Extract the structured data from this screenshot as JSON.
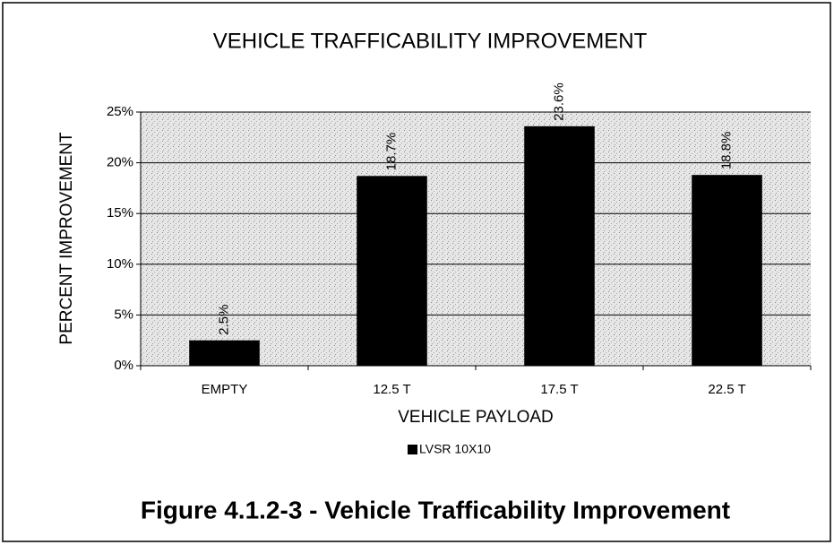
{
  "chart_data": {
    "type": "bar",
    "title": "VEHICLE TRAFFICABILITY IMPROVEMENT",
    "x_label": "VEHICLE PAYLOAD",
    "y_label": "PERCENT IMPROVEMENT",
    "categories": [
      "EMPTY",
      "12.5 T",
      "17.5 T",
      "22.5 T"
    ],
    "series": [
      {
        "name": "LVSR 10X10",
        "color": "#000000",
        "values": [
          2.5,
          18.7,
          23.6,
          18.8
        ],
        "value_labels": [
          "2.5%",
          "18.7%",
          "23.6%",
          "18.8%"
        ]
      }
    ],
    "ylim": [
      0,
      25
    ],
    "yticks": [
      {
        "value": 0,
        "label": "0%"
      },
      {
        "value": 5,
        "label": "5%"
      },
      {
        "value": 10,
        "label": "10%"
      },
      {
        "value": 15,
        "label": "15%"
      },
      {
        "value": 20,
        "label": "20%"
      },
      {
        "value": 25,
        "label": "25%"
      }
    ],
    "grid": true,
    "legend": "bottom",
    "caption": "Figure 4.1.2-3 - Vehicle Trafficability Improvement"
  }
}
